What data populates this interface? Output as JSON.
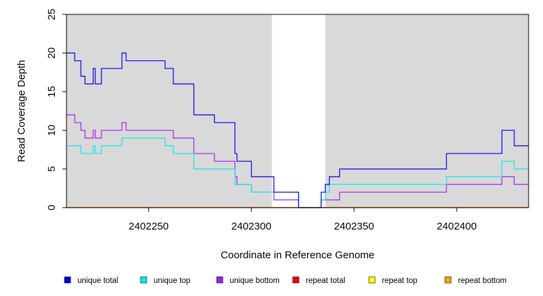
{
  "chart_data": {
    "type": "line",
    "step": true,
    "xlabel": "Coordinate in Reference Genome",
    "ylabel": "Read Coverage Depth",
    "xlim": [
      2402210,
      2402435
    ],
    "ylim": [
      0,
      25
    ],
    "x_ticks": [
      2402250,
      2402300,
      2402350,
      2402400
    ],
    "x_tick_labels": [
      "2402250",
      "2402300",
      "2402350",
      "2402400"
    ],
    "y_ticks": [
      0,
      5,
      10,
      15,
      20,
      25
    ],
    "y_tick_labels": [
      "0",
      "5",
      "10",
      "15",
      "20",
      "25"
    ],
    "shaded_regions": [
      {
        "from": 2402210,
        "to": 2402310,
        "color": "#d9d9d9"
      },
      {
        "from": 2402336,
        "to": 2402435,
        "color": "#d9d9d9"
      }
    ],
    "series": [
      {
        "name": "unique total",
        "color": "#0000ee",
        "x": [
          2402210,
          2402214,
          2402217,
          2402219,
          2402223,
          2402224,
          2402227,
          2402237,
          2402239,
          2402258,
          2402262,
          2402272,
          2402282,
          2402292,
          2402293,
          2402295,
          2402300,
          2402311,
          2402323,
          2402334,
          2402336,
          2402338,
          2402343,
          2402395,
          2402422,
          2402428,
          2402435
        ],
        "y": [
          20,
          19,
          17,
          16,
          18,
          16,
          18,
          20,
          19,
          18,
          16,
          12,
          11,
          7,
          6,
          6,
          4,
          2,
          0,
          2,
          3,
          4,
          5,
          7,
          10,
          8,
          8
        ]
      },
      {
        "name": "unique top",
        "color": "#00eeee",
        "x": [
          2402210,
          2402217,
          2402223,
          2402224,
          2402227,
          2402237,
          2402258,
          2402262,
          2402272,
          2402292,
          2402293,
          2402300,
          2402311,
          2402323,
          2402334,
          2402336,
          2402338,
          2402395,
          2402422,
          2402428,
          2402435
        ],
        "y": [
          8,
          7,
          8,
          7,
          8,
          9,
          8,
          7,
          5,
          3,
          3,
          2,
          2,
          0,
          1,
          2,
          3,
          4,
          6,
          5,
          5
        ]
      },
      {
        "name": "unique bottom",
        "color": "#a020f0",
        "x": [
          2402210,
          2402214,
          2402217,
          2402219,
          2402223,
          2402224,
          2402227,
          2402237,
          2402239,
          2402258,
          2402262,
          2402272,
          2402282,
          2402292,
          2402293,
          2402295,
          2402300,
          2402311,
          2402323,
          2402334,
          2402343,
          2402395,
          2402422,
          2402428,
          2402435
        ],
        "y": [
          12,
          11,
          10,
          9,
          10,
          9,
          10,
          11,
          10,
          10,
          9,
          7,
          6,
          4,
          3,
          3,
          2,
          1,
          0,
          1,
          2,
          3,
          4,
          3,
          3
        ]
      },
      {
        "name": "repeat total",
        "color": "#ff0000",
        "x": [
          2402210,
          2402435
        ],
        "y": [
          0,
          0
        ]
      },
      {
        "name": "repeat top",
        "color": "#ffff00",
        "x": [
          2402210,
          2402435
        ],
        "y": [
          0,
          0
        ]
      },
      {
        "name": "repeat bottom",
        "color": "#ffa500",
        "x": [
          2402210,
          2402435
        ],
        "y": [
          0,
          0
        ]
      }
    ],
    "legend": {
      "placement": "bottom",
      "entries": [
        "unique total",
        "unique top",
        "unique bottom",
        "repeat total",
        "repeat top",
        "repeat bottom"
      ]
    }
  }
}
